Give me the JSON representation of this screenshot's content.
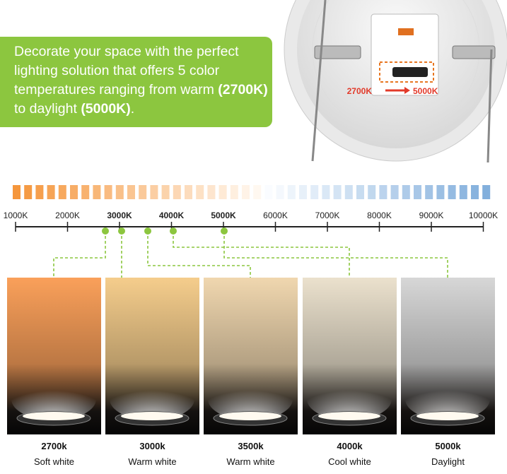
{
  "banner": {
    "text_1": "Decorate your space with the perfect lighting solution that offers 5 color temperatures ranging from warm ",
    "bold_1": "(2700K)",
    "text_2": " to daylight ",
    "bold_2": "(5000K)",
    "text_3": "."
  },
  "product": {
    "from": "2700K",
    "to": "5000K"
  },
  "scale": {
    "labels": [
      "1000K",
      "2000K",
      "3000K",
      "4000K",
      "5000K",
      "6000K",
      "7000K",
      "8000K",
      "9000K",
      "10000K"
    ]
  },
  "cards": [
    {
      "temp": "2700k",
      "name": "Soft white"
    },
    {
      "temp": "3000k",
      "name": "Warm white"
    },
    {
      "temp": "3500k",
      "name": "Warm white"
    },
    {
      "temp": "4000k",
      "name": "Cool white"
    },
    {
      "temp": "5000k",
      "name": "Daylight"
    }
  ]
}
